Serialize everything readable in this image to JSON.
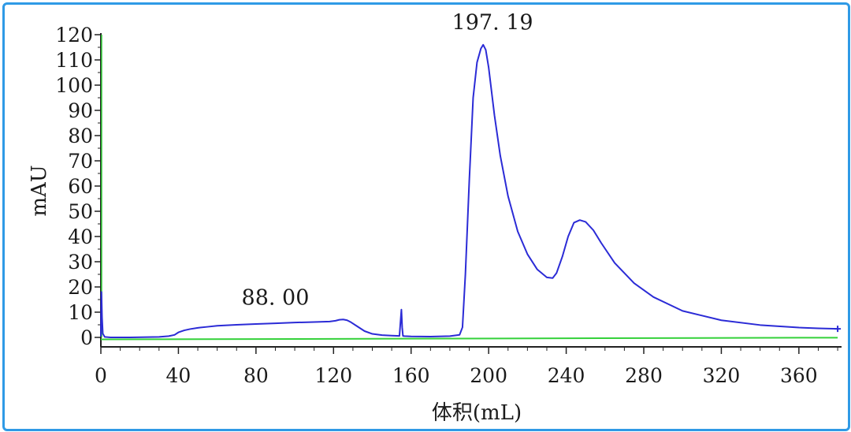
{
  "chart_data": {
    "type": "line",
    "xlabel": "体积(mL)",
    "ylabel": "mAU",
    "xlim": [
      0,
      382
    ],
    "ylim": [
      -5,
      120
    ],
    "x_ticks": [
      0,
      40,
      80,
      120,
      160,
      200,
      240,
      280,
      320,
      360
    ],
    "y_ticks": [
      0,
      10,
      20,
      30,
      40,
      50,
      60,
      70,
      80,
      90,
      100,
      110,
      120
    ],
    "grid": false,
    "colors": {
      "uv_trace": "#2b2bd6",
      "baseline_trace": "#34d13a",
      "axis": "#222222",
      "frame_border": "#2f9ae6"
    },
    "annotations": [
      {
        "text": "88. 00",
        "x": 90,
        "y": 13
      },
      {
        "text": "197. 19",
        "x": 202,
        "y": 122
      }
    ],
    "series": [
      {
        "x": [
          0,
          0.3,
          0.6,
          1,
          2,
          5,
          15,
          30,
          35,
          38,
          40,
          43,
          46,
          50,
          55,
          60,
          70,
          80,
          90,
          100,
          110,
          118,
          121,
          123,
          125,
          127,
          129,
          132,
          136,
          140,
          145,
          150,
          154,
          155,
          155.4,
          155.8,
          156.5,
          160,
          170,
          180,
          185,
          186.5,
          188,
          190,
          192,
          194,
          196,
          197.19,
          198.5,
          200,
          203,
          206,
          210,
          215,
          220,
          225,
          230,
          233,
          235,
          238,
          241,
          244,
          247,
          250,
          254,
          258,
          265,
          275,
          285,
          300,
          320,
          340,
          360,
          370,
          380
        ],
        "y": [
          0.3,
          18,
          8,
          1.5,
          0.2,
          0,
          0,
          0.2,
          0.5,
          1,
          2,
          2.8,
          3.3,
          3.8,
          4.2,
          4.6,
          5,
          5.3,
          5.6,
          5.9,
          6.1,
          6.3,
          6.6,
          7,
          7.1,
          6.8,
          6,
          4.5,
          2.5,
          1.4,
          0.9,
          0.7,
          0.6,
          11,
          4,
          0.6,
          0.5,
          0.4,
          0.3,
          0.5,
          1,
          4,
          25,
          62,
          95,
          109,
          114.5,
          116,
          114,
          107,
          88,
          72,
          56,
          42,
          33,
          27,
          23.8,
          23.5,
          25.5,
          32,
          40,
          45.5,
          46.5,
          45.8,
          42.5,
          37.5,
          29.5,
          21.5,
          16,
          10.5,
          6.8,
          4.9,
          3.9,
          3.6,
          3.4
        ]
      },
      {
        "x": [
          0,
          380
        ],
        "y": [
          -0.8,
          -0.1
        ]
      }
    ]
  }
}
